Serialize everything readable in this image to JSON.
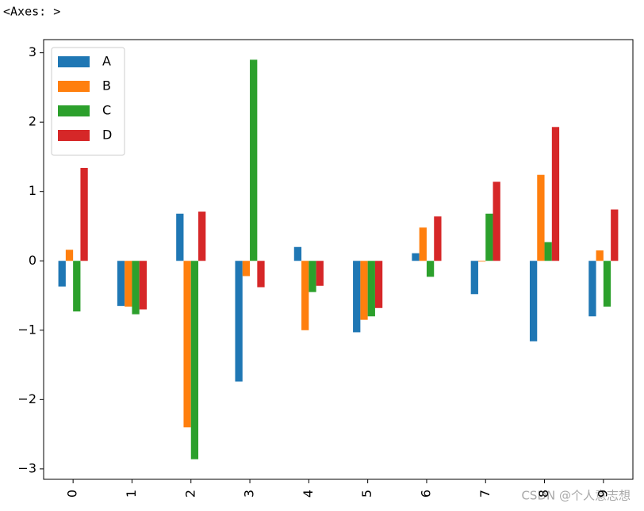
{
  "output_text": "<Axes: >",
  "watermark": "CSDN @个人意志想",
  "chart_data": {
    "type": "bar",
    "categories": [
      "0",
      "1",
      "2",
      "3",
      "4",
      "5",
      "6",
      "7",
      "8",
      "9"
    ],
    "series": [
      {
        "name": "A",
        "color": "#1f77b4",
        "values": [
          -0.37,
          -0.65,
          0.68,
          -1.74,
          0.2,
          -1.03,
          0.11,
          -0.48,
          -1.16,
          -0.8
        ]
      },
      {
        "name": "B",
        "color": "#ff7f0e",
        "values": [
          0.16,
          -0.66,
          -2.4,
          -0.22,
          -1.0,
          -0.85,
          0.48,
          -0.01,
          1.24,
          0.15
        ]
      },
      {
        "name": "C",
        "color": "#2ca02c",
        "values": [
          -0.73,
          -0.77,
          -2.86,
          2.9,
          -0.45,
          -0.8,
          -0.23,
          0.68,
          0.27,
          -0.66
        ]
      },
      {
        "name": "D",
        "color": "#d62728",
        "values": [
          1.34,
          -0.7,
          0.71,
          -0.38,
          -0.36,
          -0.68,
          0.64,
          1.14,
          1.93,
          0.74
        ]
      }
    ],
    "ylim": [
      -3.15,
      3.19
    ],
    "yticks": [
      {
        "value": -3,
        "label": "−3"
      },
      {
        "value": -2,
        "label": "−2"
      },
      {
        "value": -1,
        "label": "−1"
      },
      0,
      1,
      2,
      3
    ],
    "legend": "upper left",
    "grid": false
  }
}
